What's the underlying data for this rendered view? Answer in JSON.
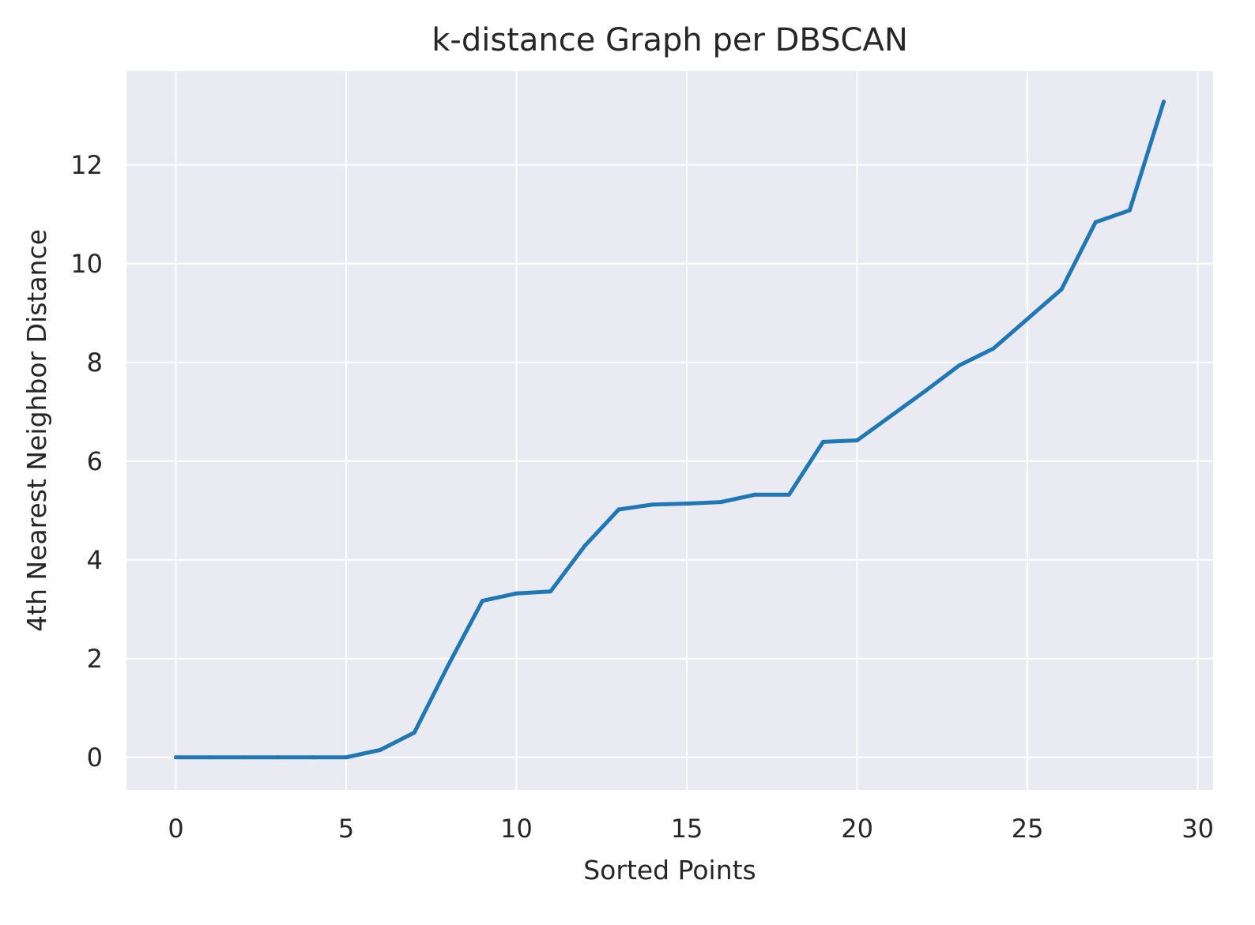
{
  "chart_data": {
    "type": "line",
    "title": "k-distance Graph per DBSCAN",
    "xlabel": "Sorted Points",
    "ylabel": "4th Nearest Neighbor Distance",
    "xlim": [
      -1.45,
      30.45
    ],
    "ylim": [
      -0.66,
      13.9
    ],
    "xticks": [
      0,
      5,
      10,
      15,
      20,
      25,
      30
    ],
    "yticks": [
      0,
      2,
      4,
      6,
      8,
      10,
      12
    ],
    "grid": true,
    "legend": "none",
    "series": [
      {
        "color": "#1f77b4",
        "x": [
          0,
          1,
          2,
          3,
          4,
          5,
          6,
          7,
          8,
          9,
          10,
          11,
          12,
          13,
          14,
          15,
          16,
          17,
          18,
          19,
          20,
          21,
          22,
          23,
          24,
          25,
          26,
          27,
          28,
          29
        ],
        "y": [
          0,
          0,
          0,
          0,
          0,
          0,
          0.15,
          0.5,
          1.87,
          3.17,
          3.32,
          3.36,
          4.28,
          5.02,
          5.12,
          5.14,
          5.17,
          5.32,
          5.32,
          6.39,
          6.42,
          6.92,
          7.42,
          7.94,
          8.28,
          8.88,
          9.48,
          10.84,
          11.08,
          13.28
        ]
      }
    ]
  },
  "colors": {
    "plot_background": "#eaeaf2",
    "grid": "#ffffff",
    "text": "#262626"
  }
}
